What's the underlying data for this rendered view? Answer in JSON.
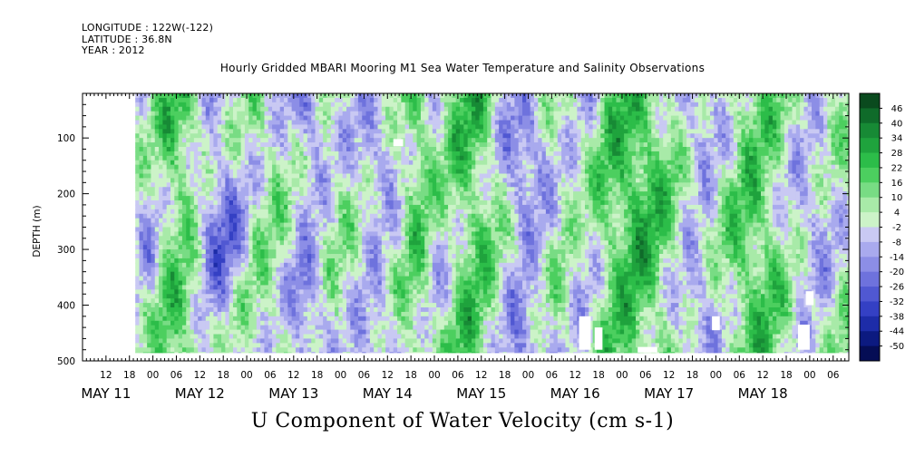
{
  "header": {
    "longitude": "LONGITUDE : 122W(-122)",
    "latitude": "LATITUDE : 36.8N",
    "year": "YEAR : 2012"
  },
  "chart_data": {
    "type": "heatmap",
    "title": "Hourly Gridded MBARI Mooring M1 Sea Water Temperature and Salinity Observations",
    "variable_label": "U Component of Water Velocity (cm s-1)",
    "ylabel": "DEPTH (m)",
    "xlabel": "",
    "ylim": [
      500,
      20
    ],
    "y_ticks": [
      100,
      200,
      300,
      400,
      500
    ],
    "time_range_hours": [
      0,
      168
    ],
    "time_axis_start": "2012-05-11 06:00",
    "x_tick_labels": [
      "12",
      "18",
      "00",
      "06",
      "12",
      "18",
      "00",
      "06",
      "12",
      "18",
      "00",
      "06",
      "12",
      "18",
      "00",
      "06",
      "12",
      "18",
      "00",
      "06",
      "12",
      "18",
      "00",
      "06",
      "12",
      "18",
      "00",
      "06",
      "12",
      "18",
      "00",
      "06"
    ],
    "x_tick_hours": [
      6,
      12,
      18,
      24,
      30,
      36,
      42,
      48,
      54,
      60,
      66,
      72,
      78,
      84,
      90,
      96,
      102,
      108,
      114,
      120,
      126,
      132,
      138,
      144,
      150,
      156,
      162,
      168,
      174,
      180,
      186,
      192
    ],
    "date_labels": [
      {
        "text": "MAY 11",
        "hour": 6
      },
      {
        "text": "MAY 12",
        "hour": 30
      },
      {
        "text": "MAY 13",
        "hour": 54
      },
      {
        "text": "MAY 14",
        "hour": 78
      },
      {
        "text": "MAY 15",
        "hour": 102
      },
      {
        "text": "MAY 16",
        "hour": 126
      },
      {
        "text": "MAY 17",
        "hour": 150
      },
      {
        "text": "MAY 18",
        "hour": 174
      }
    ],
    "data_coverage_hours": [
      13.5,
      196
    ],
    "data_depth_range_m": [
      20,
      485
    ],
    "colorbar": {
      "levels": [
        "46",
        "40",
        "34",
        "28",
        "22",
        "16",
        "10",
        "4",
        "-2",
        "-8",
        "-14",
        "-20",
        "-26",
        "-32",
        "-38",
        "-44",
        "-50"
      ],
      "range": [
        -50,
        49
      ]
    },
    "negative_band_hours": [
      {
        "start": 14,
        "end": 19,
        "amplitude": 0.5
      },
      {
        "start": 30,
        "end": 40,
        "amplitude": 0.9
      },
      {
        "start": 54,
        "end": 61,
        "amplitude": 0.75
      },
      {
        "start": 70,
        "end": 80,
        "amplitude": 0.65
      },
      {
        "start": 88,
        "end": 93,
        "amplitude": 0.45
      },
      {
        "start": 107,
        "end": 118,
        "amplitude": 0.85
      },
      {
        "start": 126,
        "end": 130,
        "amplitude": 0.45
      },
      {
        "start": 152,
        "end": 164,
        "amplitude": 0.7
      },
      {
        "start": 180,
        "end": 192,
        "amplitude": 0.6
      }
    ],
    "positive_band_hours": [
      {
        "start": 20,
        "end": 29,
        "amplitude": 0.6
      },
      {
        "start": 84,
        "end": 88,
        "amplitude": 0.55
      },
      {
        "start": 94,
        "end": 106,
        "amplitude": 0.6
      },
      {
        "start": 134,
        "end": 150,
        "amplitude": 0.75
      },
      {
        "start": 164,
        "end": 179,
        "amplitude": 0.6
      }
    ]
  }
}
